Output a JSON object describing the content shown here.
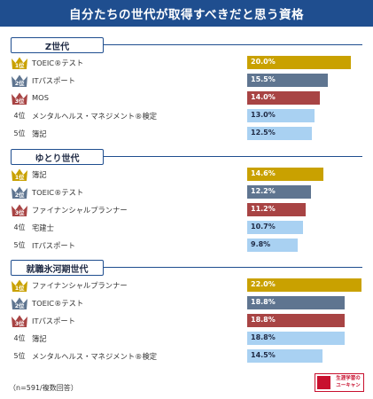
{
  "title": "自分たちの世代が取得すべきだと思う資格",
  "footnote": "（n=591/複数回答）",
  "logo": {
    "line1": "生涯学習の",
    "line2": "ユーキャン",
    "mark_text": "U-CAN"
  },
  "colors": {
    "banner": "#1f4e8f",
    "rank1": "#c9a100",
    "rank2": "#5f7590",
    "rank3": "#a84444",
    "rank_other": "#a9d1f2"
  },
  "chart_data": [
    {
      "type": "bar",
      "title": "Z世代",
      "categories": [
        "TOEIC®テスト",
        "ITパスポート",
        "MOS",
        "メンタルヘルス・マネジメント®検定",
        "簿記"
      ],
      "ranks": [
        "1位",
        "2位",
        "3位",
        "4位",
        "5位"
      ],
      "values": [
        20.0,
        15.5,
        14.0,
        13.0,
        12.5
      ],
      "value_labels": [
        "20.0%",
        "15.5%",
        "14.0%",
        "13.0%",
        "12.5%"
      ]
    },
    {
      "type": "bar",
      "title": "ゆとり世代",
      "categories": [
        "簿記",
        "TOEIC®テスト",
        "ファイナンシャルプランナー",
        "宅建士",
        "ITパスポート"
      ],
      "ranks": [
        "1位",
        "2位",
        "3位",
        "4位",
        "5位"
      ],
      "values": [
        14.6,
        12.2,
        11.2,
        10.7,
        9.8
      ],
      "value_labels": [
        "14.6%",
        "12.2%",
        "11.2%",
        "10.7%",
        "9.8%"
      ]
    },
    {
      "type": "bar",
      "title": "就職氷河期世代",
      "categories": [
        "ファイナンシャルプランナー",
        "TOEIC®テスト",
        "ITパスポート",
        "簿記",
        "メンタルヘルス・マネジメント®検定"
      ],
      "ranks": [
        "1位",
        "2位",
        "3位",
        "4位",
        "5位"
      ],
      "values": [
        22.0,
        18.8,
        18.8,
        18.8,
        14.5
      ],
      "value_labels": [
        "22.0%",
        "18.8%",
        "18.8%",
        "18.8%",
        "14.5%"
      ]
    }
  ]
}
